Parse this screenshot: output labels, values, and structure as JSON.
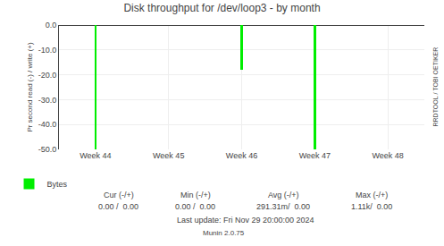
{
  "chart_data": {
    "type": "bar",
    "title": "Disk throughput for /dev/loop3 - by month",
    "ylabel": "Pr second read (-) / write (+)",
    "categories": [
      "Week 44",
      "Week 45",
      "Week 46",
      "Week 47",
      "Week 48"
    ],
    "series": [
      {
        "name": "Bytes",
        "color": "#00ee00",
        "values": [
          -50.0,
          null,
          -18.0,
          -50.0,
          null
        ]
      }
    ],
    "ylim": [
      -50,
      0
    ],
    "yticks": [
      {
        "value": 0.0,
        "label": "0.0"
      },
      {
        "value": -10.0,
        "label": "-10.0"
      },
      {
        "value": -20.0,
        "label": "-20.0"
      },
      {
        "value": -30.0,
        "label": "-30.0"
      },
      {
        "value": -40.0,
        "label": "-40.0"
      },
      {
        "value": -50.0,
        "label": "-50.0"
      }
    ],
    "grid": true,
    "legend": "lower left",
    "annotations": [
      "Cur (-/+)",
      "Min (-/+)",
      "Avg (-/+)",
      "Max (-/+)",
      "0.00 /  0.00",
      "0.00 /  0.00",
      "291.31m/  0.00",
      "1.11k/  0.00",
      "Last update: Fri Nov 29 20:00:00 2024",
      "Munin 2.0.75",
      "RRDTOOL / TOBI OETIKER"
    ]
  }
}
